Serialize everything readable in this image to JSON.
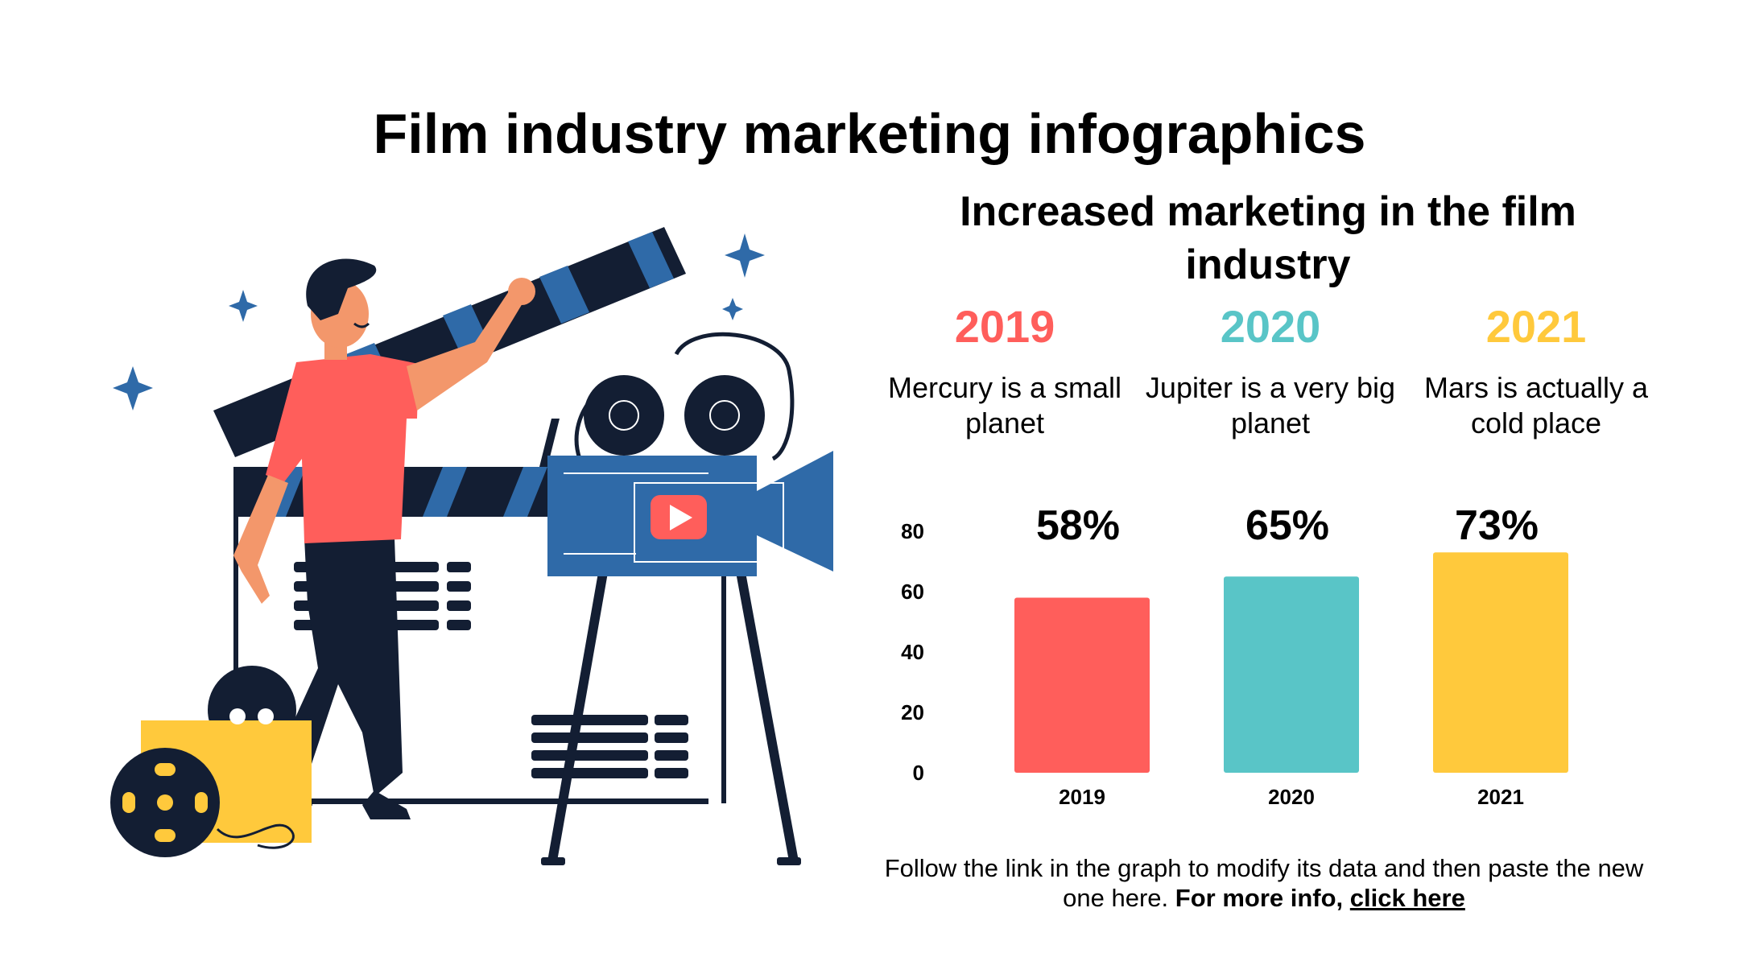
{
  "title": "Film industry marketing infographics",
  "subtitle": "Increased marketing in the film industry",
  "columns": [
    {
      "year": "2019",
      "desc": "Mercury is a small planet",
      "color": "#FF5E5B"
    },
    {
      "year": "2020",
      "desc": "Jupiter is a very big planet",
      "color": "#59C5C7"
    },
    {
      "year": "2021",
      "desc": "Mars is actually a cold place",
      "color": "#FFC93C"
    }
  ],
  "footer": {
    "text": "Follow the link in the graph to modify its data and then paste the new one here.",
    "bold": "For more info,",
    "link": "click here"
  },
  "chart_data": {
    "type": "bar",
    "categories": [
      "2019",
      "2020",
      "2021"
    ],
    "values": [
      58,
      65,
      73
    ],
    "data_labels": [
      "58%",
      "65%",
      "73%"
    ],
    "colors": [
      "#FF5E5B",
      "#59C5C7",
      "#FFC93C"
    ],
    "yticks": [
      0,
      20,
      40,
      60,
      80
    ],
    "ylim": [
      0,
      80
    ],
    "title": "",
    "xlabel": "",
    "ylabel": ""
  }
}
